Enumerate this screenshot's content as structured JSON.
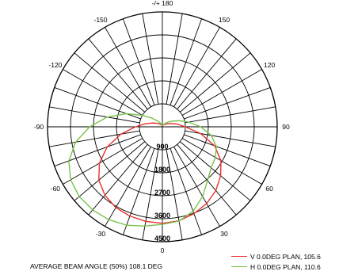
{
  "chart_data": {
    "type": "polar",
    "angle_ticks": [
      {
        "angle": 180,
        "label": "-/+ 180"
      },
      {
        "angle": 150,
        "label": "150"
      },
      {
        "angle": 120,
        "label": "120"
      },
      {
        "angle": 90,
        "label": "90"
      },
      {
        "angle": 60,
        "label": "60"
      },
      {
        "angle": 30,
        "label": "30"
      },
      {
        "angle": 0,
        "label": "0"
      },
      {
        "angle": -30,
        "label": "-30"
      },
      {
        "angle": -60,
        "label": "-60"
      },
      {
        "angle": -90,
        "label": "-90"
      },
      {
        "angle": -120,
        "label": "-120"
      },
      {
        "angle": -150,
        "label": "-150"
      }
    ],
    "radial_ticks": [
      "900",
      "1800",
      "2700",
      "3600",
      "4500"
    ],
    "rmax": 4500,
    "grid": true,
    "series": [
      {
        "name": "V 0.0DEG PLAN, 105.6",
        "color": "#e8322d",
        "points": [
          [
            0,
            3780
          ],
          [
            10,
            3740
          ],
          [
            20,
            3620
          ],
          [
            30,
            3470
          ],
          [
            40,
            3260
          ],
          [
            50,
            2980
          ],
          [
            60,
            2650
          ],
          [
            70,
            2180
          ],
          [
            80,
            1520
          ],
          [
            90,
            900
          ],
          [
            100,
            600
          ],
          [
            110,
            380
          ],
          [
            120,
            240
          ],
          [
            130,
            160
          ],
          [
            140,
            120
          ],
          [
            150,
            90
          ],
          [
            160,
            70
          ],
          [
            170,
            60
          ],
          [
            180,
            55
          ],
          [
            -170,
            60
          ],
          [
            -160,
            70
          ],
          [
            -150,
            90
          ],
          [
            -140,
            130
          ],
          [
            -130,
            190
          ],
          [
            -120,
            280
          ],
          [
            -110,
            430
          ],
          [
            -100,
            680
          ],
          [
            -90,
            1050
          ],
          [
            -80,
            1650
          ],
          [
            -70,
            2300
          ],
          [
            -60,
            2850
          ],
          [
            -50,
            3250
          ],
          [
            -40,
            3500
          ],
          [
            -30,
            3650
          ],
          [
            -20,
            3720
          ],
          [
            -10,
            3760
          ]
        ]
      },
      {
        "name": "H 0.0DEG PLAN, 110.6",
        "color": "#78c24a",
        "points": [
          [
            0,
            3820
          ],
          [
            10,
            3750
          ],
          [
            20,
            3520
          ],
          [
            30,
            3150
          ],
          [
            40,
            2750
          ],
          [
            50,
            2500
          ],
          [
            60,
            2400
          ],
          [
            70,
            2250
          ],
          [
            80,
            1950
          ],
          [
            90,
            1500
          ],
          [
            100,
            1050
          ],
          [
            110,
            700
          ],
          [
            120,
            450
          ],
          [
            130,
            290
          ],
          [
            140,
            180
          ],
          [
            150,
            110
          ],
          [
            160,
            80
          ],
          [
            170,
            60
          ],
          [
            180,
            55
          ],
          [
            -170,
            70
          ],
          [
            -160,
            110
          ],
          [
            -150,
            180
          ],
          [
            -140,
            300
          ],
          [
            -130,
            520
          ],
          [
            -120,
            900
          ],
          [
            -110,
            1500
          ],
          [
            -100,
            2200
          ],
          [
            -90,
            2850
          ],
          [
            -80,
            3450
          ],
          [
            -70,
            3900
          ],
          [
            -60,
            4150
          ],
          [
            -50,
            4250
          ],
          [
            -40,
            4250
          ],
          [
            -30,
            4200
          ],
          [
            -20,
            4100
          ],
          [
            -10,
            3950
          ]
        ]
      }
    ],
    "annotation": "AVERAGE BEAM ANGLE (50%)   108.1 DEG",
    "legend_position": "bottom-right"
  }
}
